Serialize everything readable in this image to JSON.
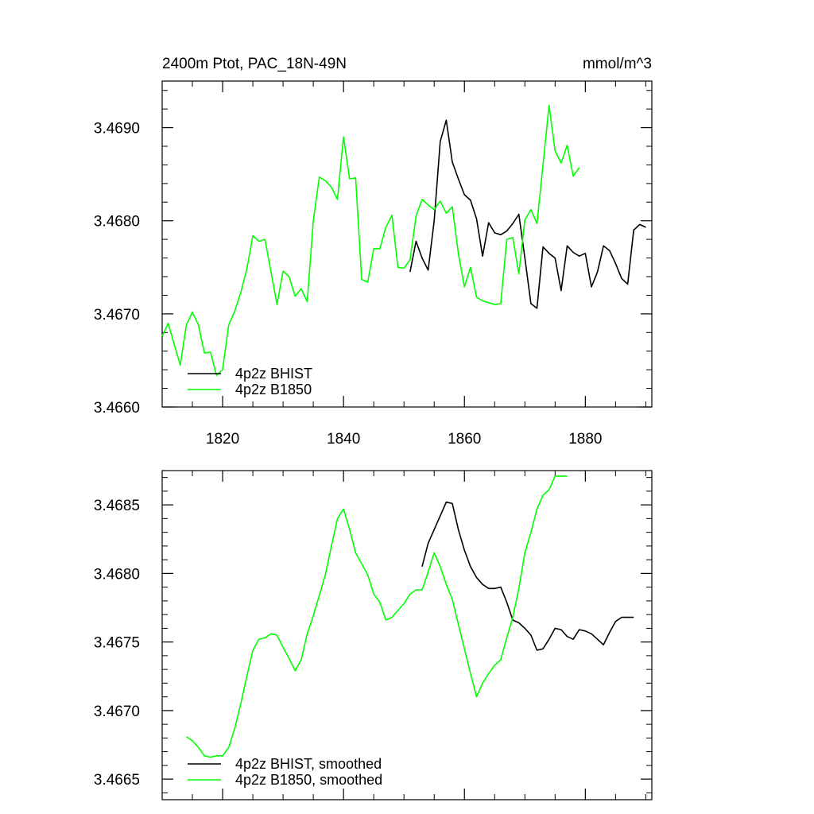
{
  "chart_data": [
    {
      "type": "line",
      "title": "2400m Ptot, PAC_18N-49N",
      "units_label": "mmol/m^3",
      "xlabel": "",
      "ylabel": "",
      "xlim": [
        1810,
        1891
      ],
      "ylim": [
        3.466,
        3.4695
      ],
      "x_ticks": [
        1820,
        1840,
        1860,
        1880
      ],
      "x_tick_labels": [
        "1820",
        "1840",
        "1860",
        "1880"
      ],
      "y_ticks": [
        3.466,
        3.467,
        3.468,
        3.469
      ],
      "y_tick_labels": [
        "3.4660",
        "3.4670",
        "3.4680",
        "3.4690"
      ],
      "legend_position": "bottom-left",
      "grid": false,
      "series": [
        {
          "name": "4p2z BHIST",
          "color": "#000000",
          "x": [
            1851,
            1852,
            1853,
            1854,
            1855,
            1856,
            1857,
            1858,
            1859,
            1860,
            1861,
            1862,
            1863,
            1864,
            1865,
            1866,
            1867,
            1868,
            1869,
            1870,
            1871,
            1872,
            1873,
            1874,
            1875,
            1876,
            1877,
            1878,
            1879,
            1880,
            1881,
            1882,
            1883,
            1884,
            1885,
            1886,
            1887,
            1888,
            1889,
            1890
          ],
          "y": [
            3.46745,
            3.46778,
            3.4676,
            3.46747,
            3.468,
            3.46885,
            3.46908,
            3.46863,
            3.46845,
            3.46828,
            3.46822,
            3.46802,
            3.46762,
            3.46798,
            3.46787,
            3.46785,
            3.46789,
            3.46797,
            3.46807,
            3.4676,
            3.46711,
            3.46706,
            3.46772,
            3.46765,
            3.4676,
            3.46725,
            3.46773,
            3.46766,
            3.46762,
            3.46765,
            3.46729,
            3.46745,
            3.46773,
            3.46768,
            3.46754,
            3.46738,
            3.46732,
            3.4679,
            3.46796,
            3.46793
          ]
        },
        {
          "name": "4p2z B1850",
          "color": "#00ff00",
          "x": [
            1810,
            1811,
            1812,
            1813,
            1814,
            1815,
            1816,
            1817,
            1818,
            1819,
            1820,
            1821,
            1822,
            1823,
            1824,
            1825,
            1826,
            1827,
            1828,
            1829,
            1830,
            1831,
            1832,
            1833,
            1834,
            1835,
            1836,
            1837,
            1838,
            1839,
            1840,
            1841,
            1842,
            1843,
            1844,
            1845,
            1846,
            1847,
            1848,
            1849,
            1850,
            1851,
            1852,
            1853,
            1854,
            1855,
            1856,
            1857,
            1858,
            1859,
            1860,
            1861,
            1862,
            1863,
            1864,
            1865,
            1866,
            1867,
            1868,
            1869,
            1870,
            1871,
            1872,
            1873,
            1874,
            1875,
            1876,
            1877,
            1878,
            1879
          ],
          "y": [
            3.46676,
            3.4669,
            3.46667,
            3.46645,
            3.46688,
            3.46702,
            3.46688,
            3.46658,
            3.46659,
            3.46634,
            3.4664,
            3.46688,
            3.46703,
            3.46723,
            3.46748,
            3.46784,
            3.46778,
            3.4678,
            3.46745,
            3.4671,
            3.46746,
            3.4674,
            3.46719,
            3.46727,
            3.46713,
            3.468,
            3.46847,
            3.46843,
            3.46836,
            3.46823,
            3.4689,
            3.46845,
            3.46846,
            3.46737,
            3.46734,
            3.4677,
            3.4677,
            3.46793,
            3.46806,
            3.4675,
            3.46749,
            3.46758,
            3.46805,
            3.46823,
            3.46817,
            3.46812,
            3.46821,
            3.46808,
            3.46815,
            3.46765,
            3.46729,
            3.4675,
            3.46718,
            3.46714,
            3.46712,
            3.4671,
            3.46711,
            3.4678,
            3.46782,
            3.46743,
            3.46801,
            3.46812,
            3.46797,
            3.4686,
            3.46924,
            3.46875,
            3.46862,
            3.46881,
            3.46848,
            3.46857
          ]
        }
      ]
    },
    {
      "type": "line",
      "title": "",
      "xlabel": "",
      "ylabel": "",
      "xlim": [
        1810,
        1891
      ],
      "ylim": [
        3.46635,
        3.46875
      ],
      "x_ticks": [
        1820,
        1840,
        1860,
        1880
      ],
      "y_ticks": [
        3.4665,
        3.467,
        3.4675,
        3.468,
        3.4685
      ],
      "y_tick_labels": [
        "3.4665",
        "3.4670",
        "3.4675",
        "3.4680",
        "3.4685"
      ],
      "legend_position": "bottom-left",
      "grid": false,
      "series": [
        {
          "name": "4p2z BHIST, smoothed",
          "color": "#000000",
          "x": [
            1853,
            1854,
            1855,
            1856,
            1857,
            1858,
            1859,
            1860,
            1861,
            1862,
            1863,
            1864,
            1865,
            1866,
            1867,
            1868,
            1869,
            1870,
            1871,
            1872,
            1873,
            1874,
            1875,
            1876,
            1877,
            1878,
            1879,
            1880,
            1881,
            1882,
            1883,
            1884,
            1885,
            1886,
            1887,
            1888
          ],
          "y": [
            3.46805,
            3.46822,
            3.46832,
            3.46842,
            3.46852,
            3.46851,
            3.46832,
            3.46817,
            3.46805,
            3.46797,
            3.46792,
            3.46789,
            3.46789,
            3.4679,
            3.46779,
            3.46766,
            3.46764,
            3.4676,
            3.46755,
            3.46744,
            3.46745,
            3.46752,
            3.4676,
            3.46759,
            3.46754,
            3.46752,
            3.46759,
            3.46758,
            3.46756,
            3.46752,
            3.46748,
            3.46757,
            3.46765,
            3.46768,
            3.46768,
            3.46768
          ]
        },
        {
          "name": "4p2z B1850, smoothed",
          "color": "#00ff00",
          "x": [
            1814,
            1815,
            1816,
            1817,
            1818,
            1819,
            1820,
            1821,
            1822,
            1823,
            1824,
            1825,
            1826,
            1827,
            1828,
            1829,
            1830,
            1831,
            1832,
            1833,
            1834,
            1835,
            1836,
            1837,
            1838,
            1839,
            1840,
            1841,
            1842,
            1843,
            1844,
            1845,
            1846,
            1847,
            1848,
            1849,
            1850,
            1851,
            1852,
            1853,
            1854,
            1855,
            1856,
            1857,
            1858,
            1859,
            1860,
            1861,
            1862,
            1863,
            1864,
            1865,
            1866,
            1867,
            1868,
            1869,
            1870,
            1871,
            1872,
            1873,
            1874,
            1875,
            1876,
            1877
          ],
          "y": [
            3.46681,
            3.46678,
            3.46673,
            3.46667,
            3.46666,
            3.46667,
            3.46667,
            3.46673,
            3.46687,
            3.46705,
            3.46725,
            3.46744,
            3.46752,
            3.46753,
            3.46756,
            3.46755,
            3.46746,
            3.46738,
            3.46729,
            3.46737,
            3.46756,
            3.46769,
            3.46784,
            3.46799,
            3.4682,
            3.4684,
            3.46847,
            3.46832,
            3.46815,
            3.46807,
            3.46799,
            3.46785,
            3.46779,
            3.46766,
            3.46768,
            3.46773,
            3.46778,
            3.46785,
            3.46788,
            3.46788,
            3.46801,
            3.46815,
            3.46805,
            3.46792,
            3.46781,
            3.46763,
            3.46745,
            3.46727,
            3.4671,
            3.4672,
            3.46727,
            3.46733,
            3.46737,
            3.46753,
            3.46768,
            3.46789,
            3.46815,
            3.4683,
            3.46847,
            3.46857,
            3.46861,
            3.46871,
            3.46871,
            3.46871
          ]
        }
      ]
    }
  ]
}
